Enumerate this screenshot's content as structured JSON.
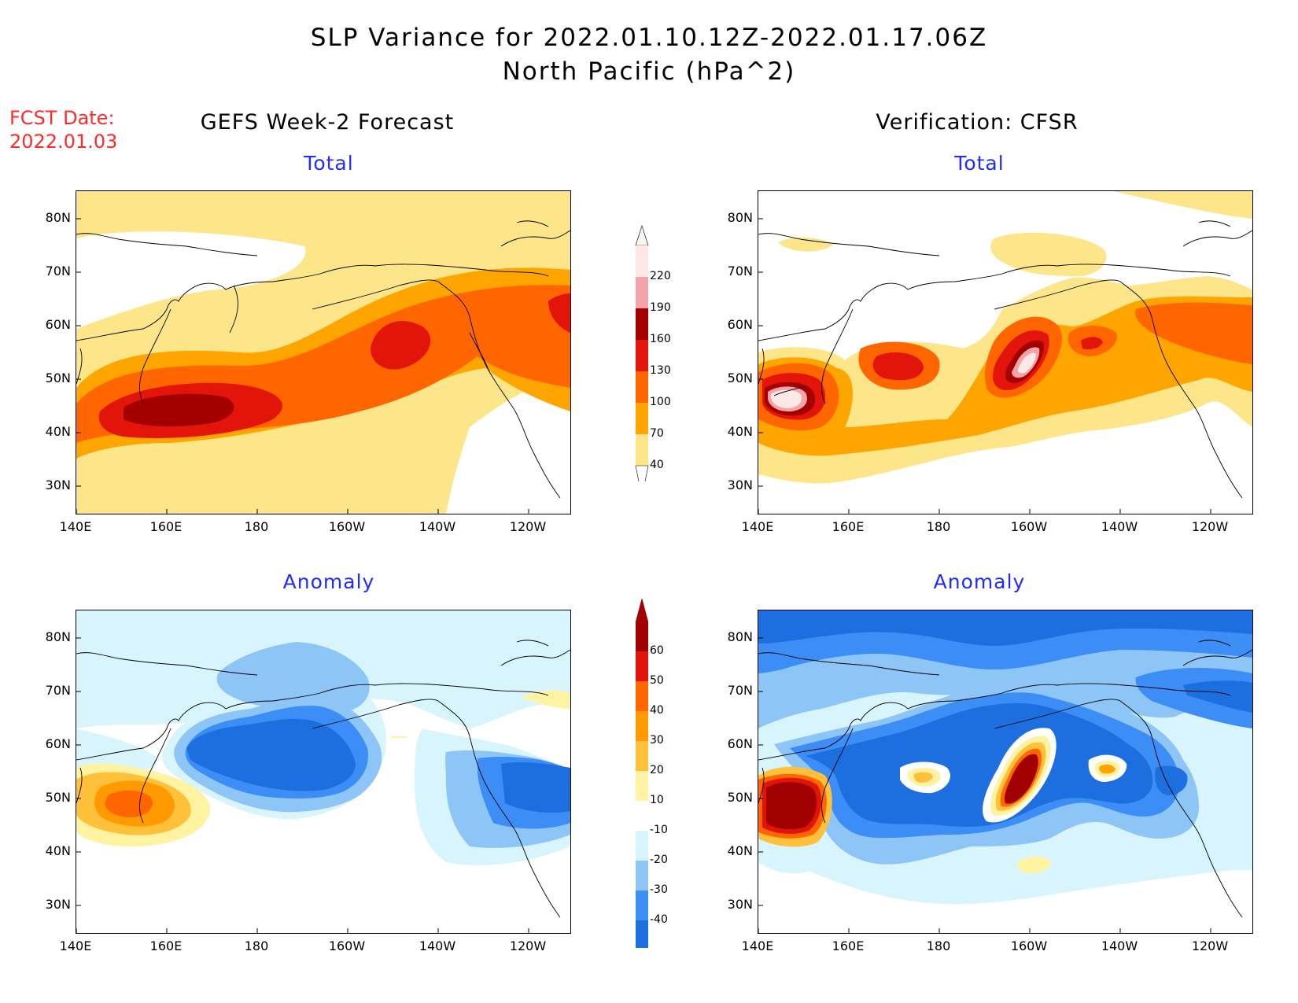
{
  "header": {
    "title_line1": "SLP Variance for 2022.01.10.12Z-2022.01.17.06Z",
    "title_line2": "North Pacific (hPa^2)",
    "fcst_label": "FCST Date:",
    "fcst_date": "2022.01.03",
    "left_column": "GEFS Week-2 Forecast",
    "right_column": "Verification: CFSR"
  },
  "panels": {
    "top_left": {
      "title": "Total"
    },
    "top_right": {
      "title": "Total"
    },
    "bottom_left": {
      "title": "Anomaly"
    },
    "bottom_right": {
      "title": "Anomaly"
    }
  },
  "axes": {
    "lat_labels": [
      "80N",
      "70N",
      "60N",
      "50N",
      "40N",
      "30N"
    ],
    "lon_labels": [
      "140E",
      "160E",
      "180",
      "160W",
      "140W",
      "120W"
    ]
  },
  "colorbar_total": {
    "levels": [
      "40",
      "70",
      "100",
      "130",
      "160",
      "190",
      "220"
    ],
    "colors": [
      "#fde68a",
      "#ffa500",
      "#ff6600",
      "#e3140a",
      "#a50000",
      "#f4a3a8",
      "#fde8e8"
    ]
  },
  "colorbar_anomaly": {
    "levels": [
      "-40",
      "-30",
      "-20",
      "-10",
      "10",
      "20",
      "30",
      "40",
      "50",
      "60"
    ],
    "colors": [
      "#1d6fe0",
      "#3c8df5",
      "#8ec5f7",
      "#d8f4fd",
      "#ffffff",
      "#fff2a0",
      "#ffc13a",
      "#ff9a00",
      "#ff6600",
      "#e0140a",
      "#a00000"
    ]
  },
  "fill_colors": {
    "y1": "#fde68a",
    "o1": "#ffa500",
    "o2": "#ff6600",
    "r1": "#e3140a",
    "r2": "#a50000",
    "p1": "#f4a3a8",
    "p2": "#fde8e8",
    "b0": "#d8f4fd",
    "b1": "#8ec5f7",
    "b2": "#3c8df5",
    "b3": "#1d6fe0",
    "ay": "#fff2a0",
    "ao": "#ffc13a",
    "ao2": "#ff9a00",
    "ar": "#ff6600"
  }
}
